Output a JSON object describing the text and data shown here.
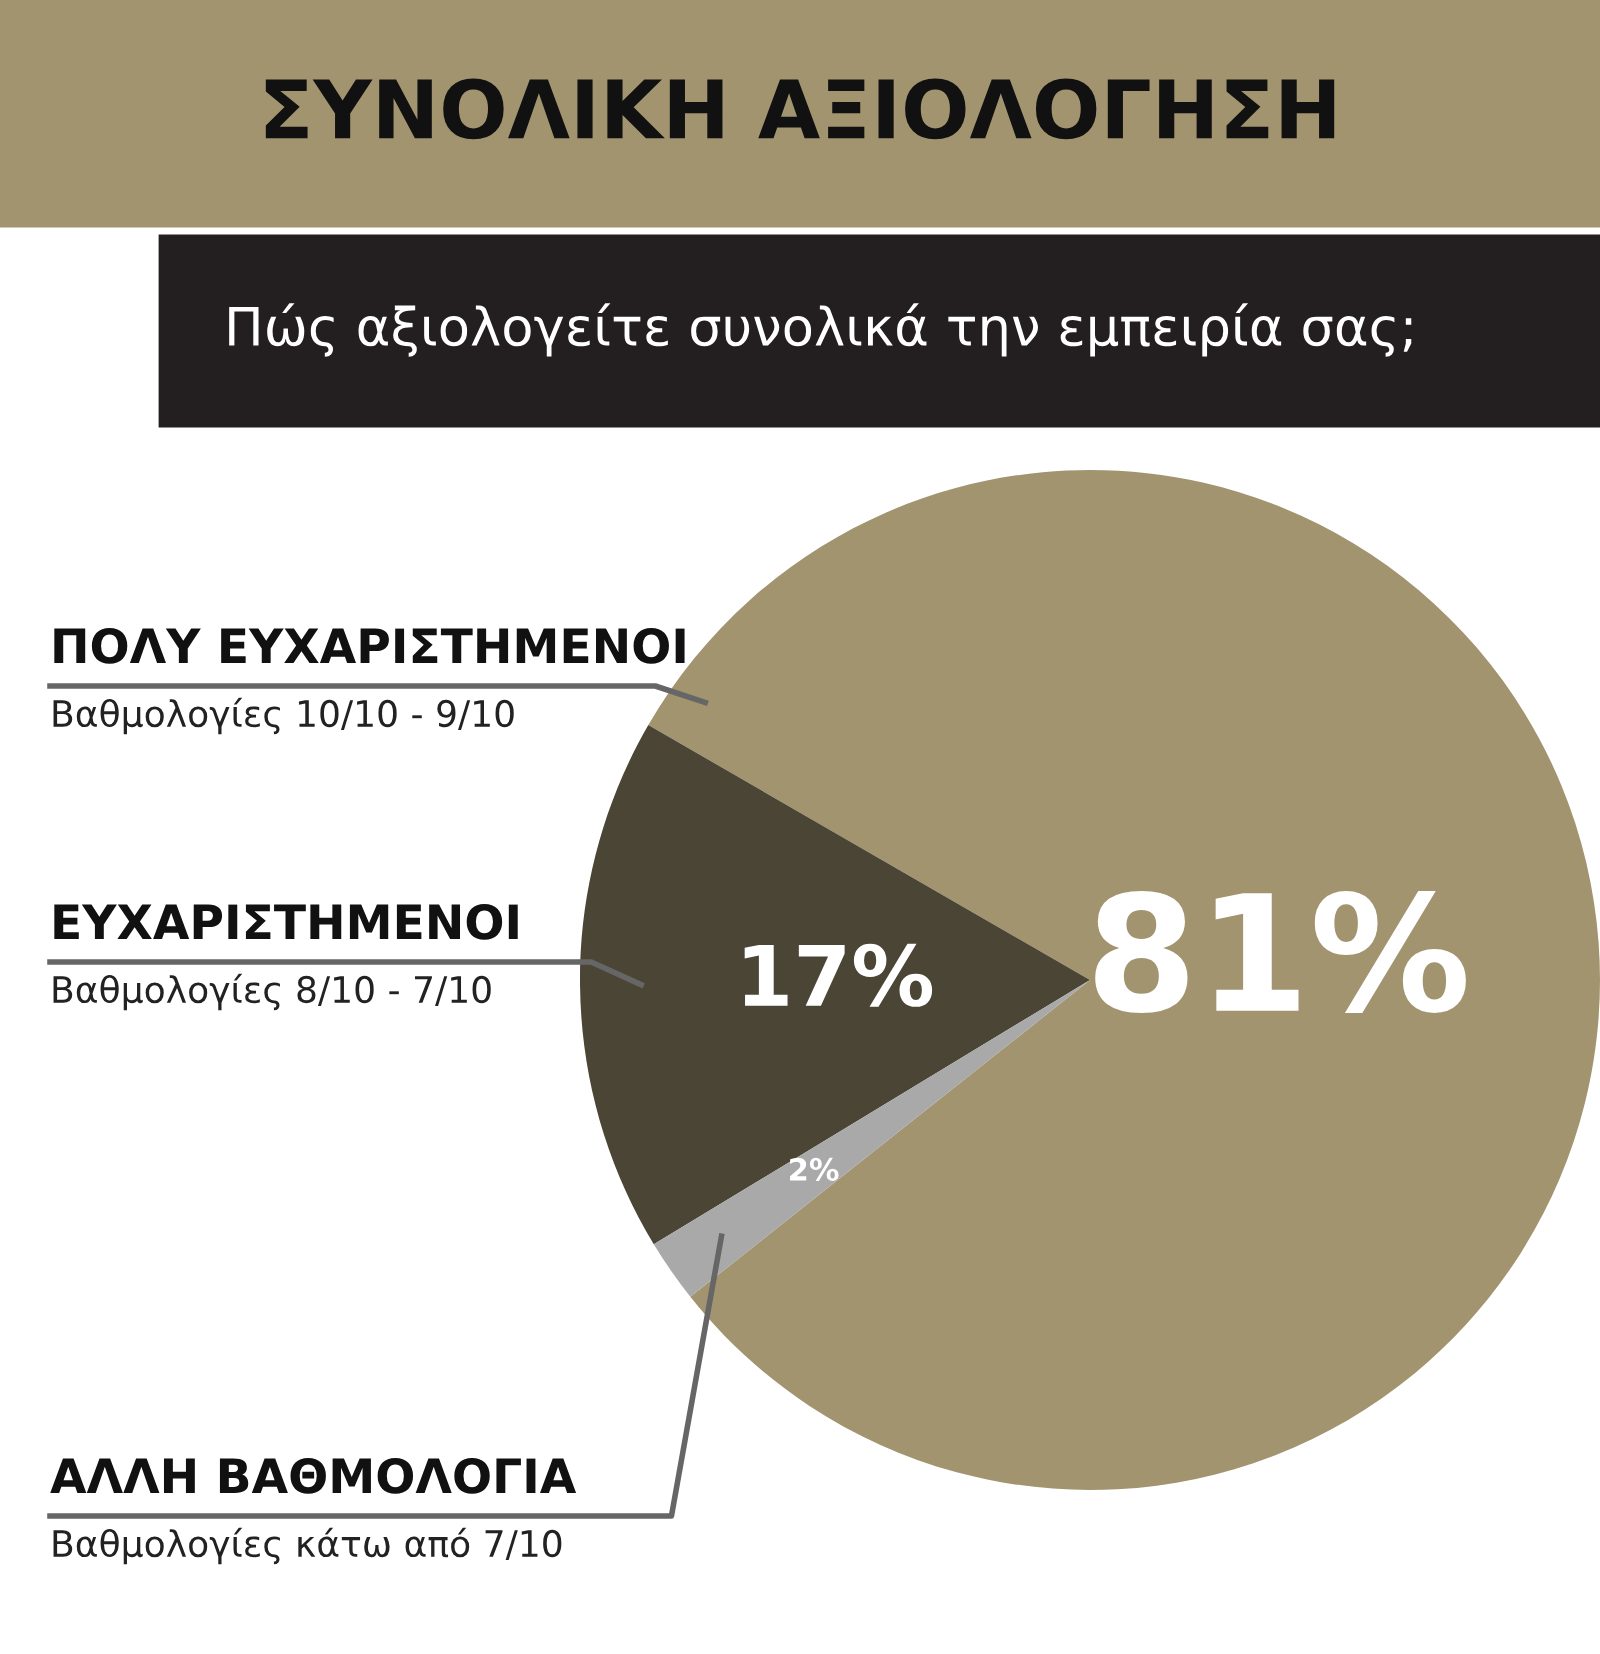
{
  "chart_data": {
    "type": "pie",
    "title": "ΣΥΝΟΛΙΚΗ ΑΞΙΟΛΟΓΗΣΗ",
    "subtitle": "Πώς αξιολογείτε συνολικά την εμπειρία σας;",
    "categories": [
      "ΠΟΛΥ ΕΥΧΑΡΙΣΤΗΜΕΝΟΙ",
      "ΕΥΧΑΡΙΣΤΗΜΕΝΟΙ",
      "ΑΛΛΗ ΒΑΘΜΟΛΟΓΙΑ"
    ],
    "values": [
      81,
      17,
      2
    ],
    "colors": [
      "#a39470",
      "#4a4535",
      "#a9a9a9"
    ],
    "value_labels": [
      "81%",
      "17%",
      "2%"
    ],
    "annotations": [
      "Βαθμολογίες 10/10 - 9/10",
      "Βαθμολογίες 8/10 - 7/10",
      "Βαθμολογίες κάτω από 7/10"
    ]
  }
}
